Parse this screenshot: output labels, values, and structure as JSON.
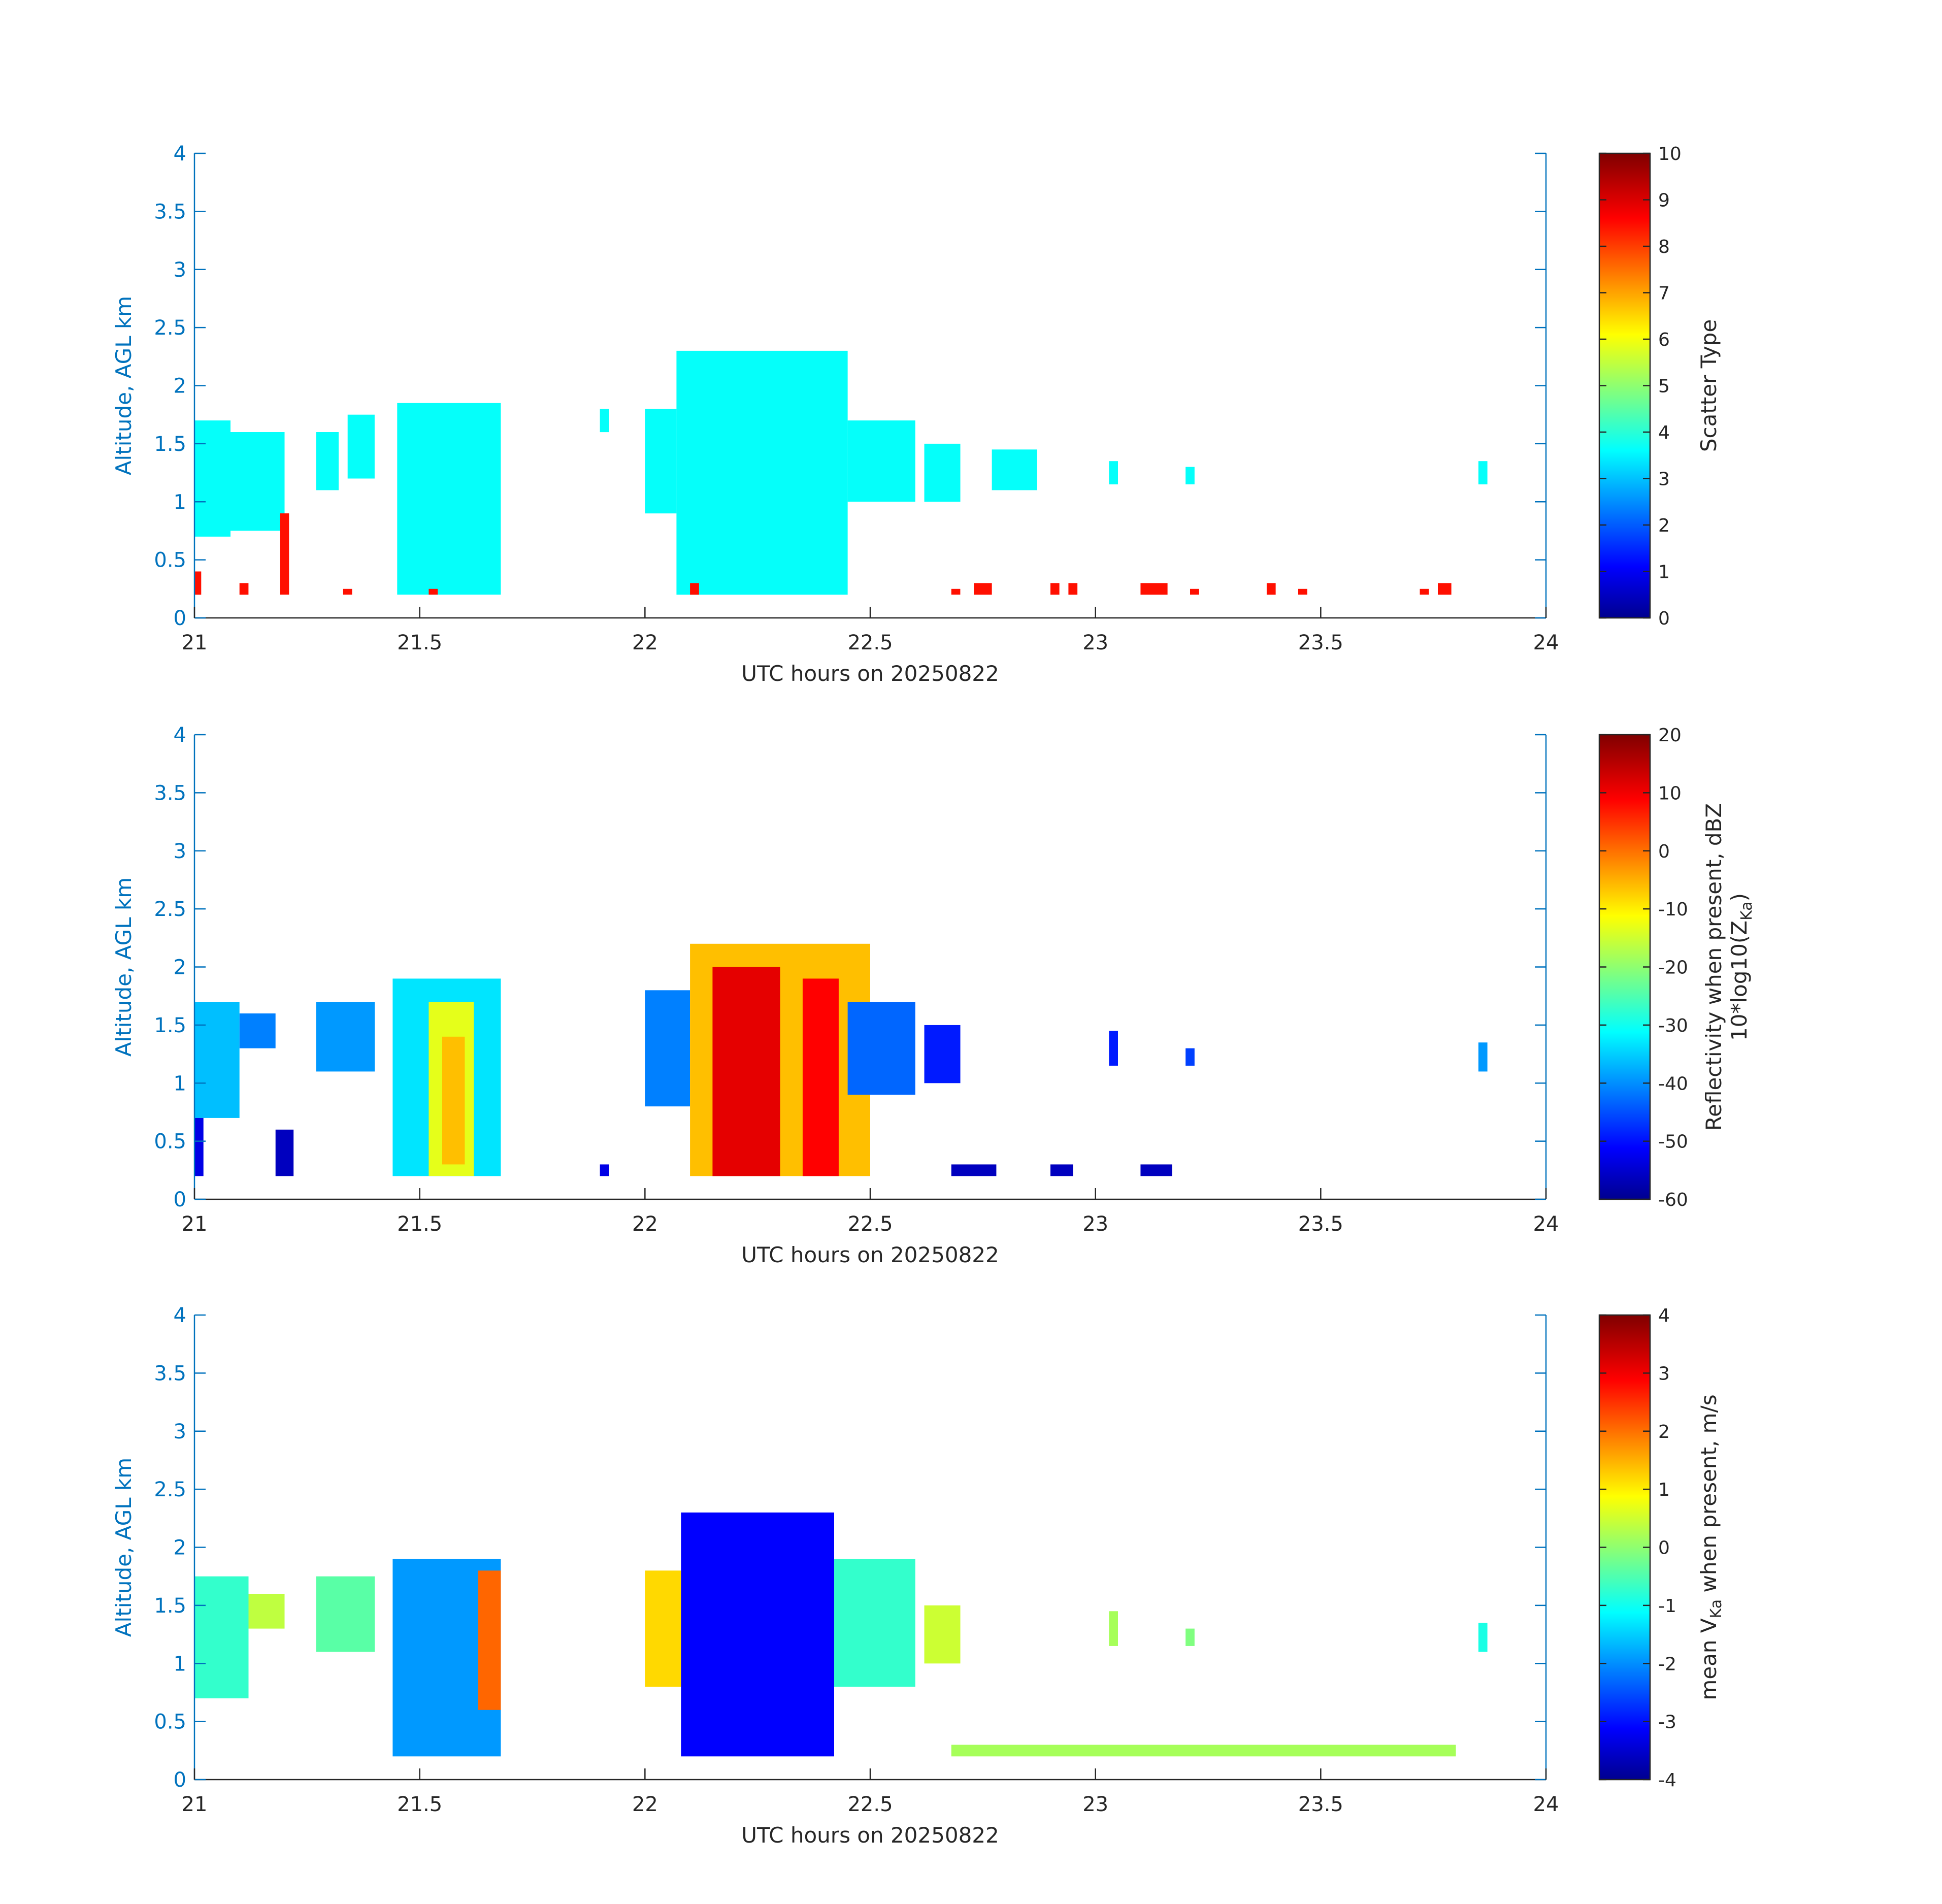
{
  "chart_data": [
    {
      "type": "heatmap",
      "panel": "scatter-type",
      "xlabel": "UTC hours on 20250822",
      "ylabel": "Altitude, AGL km",
      "xlim": [
        21,
        24
      ],
      "ylim": [
        0,
        4
      ],
      "xticks": [
        "21",
        "21.5",
        "22",
        "22.5",
        "23",
        "23.5",
        "24"
      ],
      "yticks": [
        "0",
        "0.5",
        "1",
        "1.5",
        "2",
        "2.5",
        "3",
        "3.5",
        "4"
      ],
      "colorbar": {
        "label": "Scatter Type",
        "label_line2": "",
        "range": [
          0,
          10
        ],
        "ticks": [
          "0",
          "1",
          "2",
          "3",
          "4",
          "5",
          "6",
          "7",
          "8",
          "9",
          "10"
        ]
      },
      "regions": [
        {
          "x": [
            21.0,
            21.08
          ],
          "y": [
            0.7,
            1.7
          ],
          "value": 3.8
        },
        {
          "x": [
            21.08,
            21.2
          ],
          "y": [
            0.75,
            1.6
          ],
          "value": 3.8
        },
        {
          "x": [
            21.27,
            21.32
          ],
          "y": [
            1.1,
            1.6
          ],
          "value": 3.8
        },
        {
          "x": [
            21.34,
            21.4
          ],
          "y": [
            1.2,
            1.75
          ],
          "value": 3.8
        },
        {
          "x": [
            21.45,
            21.68
          ],
          "y": [
            0.2,
            1.85
          ],
          "value": 3.8
        },
        {
          "x": [
            21.9,
            21.92
          ],
          "y": [
            1.6,
            1.8
          ],
          "value": 3.8
        },
        {
          "x": [
            22.0,
            22.07
          ],
          "y": [
            0.9,
            1.8
          ],
          "value": 3.8
        },
        {
          "x": [
            22.07,
            22.45
          ],
          "y": [
            0.2,
            2.3
          ],
          "value": 3.8
        },
        {
          "x": [
            22.45,
            22.6
          ],
          "y": [
            1.0,
            1.7
          ],
          "value": 3.8
        },
        {
          "x": [
            22.62,
            22.7
          ],
          "y": [
            1.0,
            1.5
          ],
          "value": 3.8
        },
        {
          "x": [
            22.77,
            22.87
          ],
          "y": [
            1.1,
            1.45
          ],
          "value": 3.8
        },
        {
          "x": [
            23.03,
            23.05
          ],
          "y": [
            1.15,
            1.35
          ],
          "value": 3.8
        },
        {
          "x": [
            23.2,
            23.22
          ],
          "y": [
            1.15,
            1.3
          ],
          "value": 3.8
        },
        {
          "x": [
            23.85,
            23.87
          ],
          "y": [
            1.15,
            1.35
          ],
          "value": 3.8
        },
        {
          "x": [
            21.0,
            21.015
          ],
          "y": [
            0.2,
            0.4
          ],
          "value": 8.6
        },
        {
          "x": [
            21.1,
            21.12
          ],
          "y": [
            0.2,
            0.3
          ],
          "value": 8.6
        },
        {
          "x": [
            21.19,
            21.21
          ],
          "y": [
            0.2,
            0.9
          ],
          "value": 8.6
        },
        {
          "x": [
            21.33,
            21.35
          ],
          "y": [
            0.2,
            0.25
          ],
          "value": 8.6
        },
        {
          "x": [
            21.52,
            21.54
          ],
          "y": [
            0.2,
            0.25
          ],
          "value": 8.6
        },
        {
          "x": [
            22.1,
            22.12
          ],
          "y": [
            0.2,
            0.3
          ],
          "value": 8.6
        },
        {
          "x": [
            22.68,
            22.7
          ],
          "y": [
            0.2,
            0.25
          ],
          "value": 8.6
        },
        {
          "x": [
            22.73,
            22.77
          ],
          "y": [
            0.2,
            0.3
          ],
          "value": 8.6
        },
        {
          "x": [
            22.9,
            22.92
          ],
          "y": [
            0.2,
            0.3
          ],
          "value": 8.6
        },
        {
          "x": [
            22.94,
            22.96
          ],
          "y": [
            0.2,
            0.3
          ],
          "value": 8.6
        },
        {
          "x": [
            23.1,
            23.16
          ],
          "y": [
            0.2,
            0.3
          ],
          "value": 8.6
        },
        {
          "x": [
            23.21,
            23.23
          ],
          "y": [
            0.2,
            0.25
          ],
          "value": 8.6
        },
        {
          "x": [
            23.38,
            23.4
          ],
          "y": [
            0.2,
            0.3
          ],
          "value": 8.6
        },
        {
          "x": [
            23.45,
            23.47
          ],
          "y": [
            0.2,
            0.25
          ],
          "value": 8.6
        },
        {
          "x": [
            23.72,
            23.74
          ],
          "y": [
            0.2,
            0.25
          ],
          "value": 8.6
        },
        {
          "x": [
            23.76,
            23.79
          ],
          "y": [
            0.2,
            0.3
          ],
          "value": 8.6
        }
      ]
    },
    {
      "type": "heatmap",
      "panel": "reflectivity",
      "xlabel": "UTC hours on 20250822",
      "ylabel": "Altitude, AGL km",
      "xlim": [
        21,
        24
      ],
      "ylim": [
        0,
        4
      ],
      "xticks": [
        "21",
        "21.5",
        "22",
        "22.5",
        "23",
        "23.5",
        "24"
      ],
      "yticks": [
        "0",
        "0.5",
        "1",
        "1.5",
        "2",
        "2.5",
        "3",
        "3.5",
        "4"
      ],
      "colorbar": {
        "label": "Reflectivity when present, dBZ",
        "label_line2": "10*log10(Z",
        "label_line2_sub": "Ka",
        "label_line2_end": ")",
        "range": [
          -60,
          20
        ],
        "ticks": [
          "-60",
          "-50",
          "-40",
          "-30",
          "-20",
          "-10",
          "0",
          "10",
          "20"
        ]
      },
      "regions": [
        {
          "x": [
            21.0,
            21.1
          ],
          "y": [
            0.7,
            1.7
          ],
          "value": -35
        },
        {
          "x": [
            21.1,
            21.18
          ],
          "y": [
            1.3,
            1.6
          ],
          "value": -40
        },
        {
          "x": [
            21.27,
            21.4
          ],
          "y": [
            1.1,
            1.7
          ],
          "value": -38
        },
        {
          "x": [
            21.44,
            21.68
          ],
          "y": [
            0.2,
            1.9
          ],
          "value": -32
        },
        {
          "x": [
            21.52,
            21.62
          ],
          "y": [
            0.2,
            1.7
          ],
          "value": -12
        },
        {
          "x": [
            21.55,
            21.6
          ],
          "y": [
            0.3,
            1.4
          ],
          "value": -5
        },
        {
          "x": [
            21.0,
            21.02
          ],
          "y": [
            0.2,
            0.7
          ],
          "value": -52
        },
        {
          "x": [
            21.18,
            21.22
          ],
          "y": [
            0.2,
            0.6
          ],
          "value": -55
        },
        {
          "x": [
            21.9,
            21.92
          ],
          "y": [
            0.2,
            0.3
          ],
          "value": -52
        },
        {
          "x": [
            22.0,
            22.1
          ],
          "y": [
            0.8,
            1.8
          ],
          "value": -40
        },
        {
          "x": [
            22.1,
            22.5
          ],
          "y": [
            0.2,
            2.2
          ],
          "value": -5
        },
        {
          "x": [
            22.15,
            22.3
          ],
          "y": [
            0.2,
            2.0
          ],
          "value": 12
        },
        {
          "x": [
            22.35,
            22.43
          ],
          "y": [
            0.2,
            1.9
          ],
          "value": 10
        },
        {
          "x": [
            22.45,
            22.6
          ],
          "y": [
            0.9,
            1.7
          ],
          "value": -42
        },
        {
          "x": [
            22.62,
            22.7
          ],
          "y": [
            1.0,
            1.5
          ],
          "value": -48
        },
        {
          "x": [
            22.68,
            22.78
          ],
          "y": [
            0.2,
            0.3
          ],
          "value": -55
        },
        {
          "x": [
            22.9,
            22.95
          ],
          "y": [
            0.2,
            0.3
          ],
          "value": -55
        },
        {
          "x": [
            23.03,
            23.05
          ],
          "y": [
            1.15,
            1.45
          ],
          "value": -48
        },
        {
          "x": [
            23.1,
            23.17
          ],
          "y": [
            0.2,
            0.3
          ],
          "value": -55
        },
        {
          "x": [
            23.2,
            23.22
          ],
          "y": [
            1.15,
            1.3
          ],
          "value": -45
        },
        {
          "x": [
            23.85,
            23.87
          ],
          "y": [
            1.1,
            1.35
          ],
          "value": -38
        }
      ]
    },
    {
      "type": "heatmap",
      "panel": "mean-velocity",
      "xlabel": "UTC hours on 20250822",
      "ylabel": "Altitude, AGL km",
      "xlim": [
        21,
        24
      ],
      "ylim": [
        0,
        4
      ],
      "xticks": [
        "21",
        "21.5",
        "22",
        "22.5",
        "23",
        "23.5",
        "24"
      ],
      "yticks": [
        "0",
        "0.5",
        "1",
        "1.5",
        "2",
        "2.5",
        "3",
        "3.5",
        "4"
      ],
      "colorbar": {
        "label_pre": "mean V",
        "label_sub": "Ka",
        "label_post": " when present, m/s",
        "range": [
          -4,
          4
        ],
        "ticks": [
          "-4",
          "-3",
          "-2",
          "-1",
          "0",
          "1",
          "2",
          "3",
          "4"
        ]
      },
      "regions": [
        {
          "x": [
            21.0,
            21.12
          ],
          "y": [
            0.7,
            1.75
          ],
          "value": -0.6
        },
        {
          "x": [
            21.12,
            21.2
          ],
          "y": [
            1.3,
            1.6
          ],
          "value": 0.5
        },
        {
          "x": [
            21.27,
            21.4
          ],
          "y": [
            1.1,
            1.75
          ],
          "value": -0.3
        },
        {
          "x": [
            21.44,
            21.68
          ],
          "y": [
            0.2,
            1.9
          ],
          "value": -1.8
        },
        {
          "x": [
            21.63,
            21.68
          ],
          "y": [
            0.6,
            1.8
          ],
          "value": 2.2
        },
        {
          "x": [
            22.0,
            22.08
          ],
          "y": [
            0.8,
            1.8
          ],
          "value": 1.3
        },
        {
          "x": [
            22.08,
            22.42
          ],
          "y": [
            0.2,
            2.3
          ],
          "value": -3.0
        },
        {
          "x": [
            22.42,
            22.6
          ],
          "y": [
            0.8,
            1.9
          ],
          "value": -0.6
        },
        {
          "x": [
            22.62,
            22.7
          ],
          "y": [
            1.0,
            1.5
          ],
          "value": 0.6
        },
        {
          "x": [
            22.68,
            23.8
          ],
          "y": [
            0.2,
            0.3
          ],
          "value": 0.3
        },
        {
          "x": [
            23.03,
            23.05
          ],
          "y": [
            1.15,
            1.45
          ],
          "value": 0.3
        },
        {
          "x": [
            23.2,
            23.22
          ],
          "y": [
            1.15,
            1.3
          ],
          "value": 0.0
        },
        {
          "x": [
            23.85,
            23.87
          ],
          "y": [
            1.1,
            1.35
          ],
          "value": -0.8
        }
      ]
    }
  ]
}
